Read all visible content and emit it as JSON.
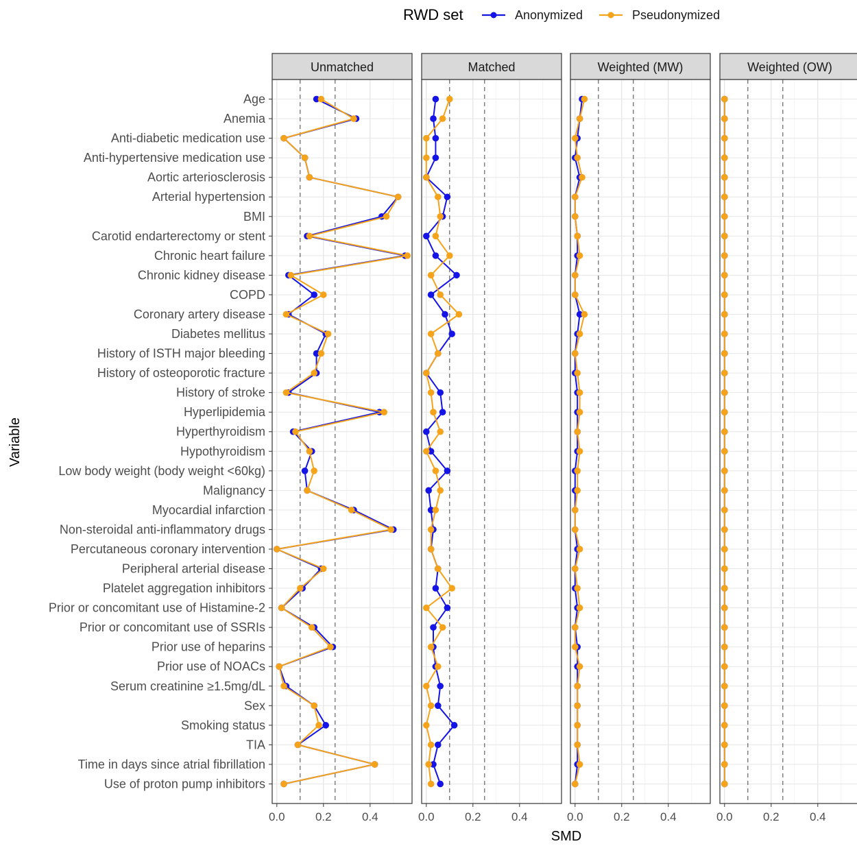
{
  "legend": {
    "title": "RWD set",
    "items": [
      {
        "label": "Anonymized",
        "color": "#1414e6"
      },
      {
        "label": "Pseudonymized",
        "color": "#f5a31a"
      }
    ]
  },
  "chart_data": {
    "type": "line",
    "xlabel": "SMD",
    "ylabel": "Variable",
    "xlim": [
      -0.02,
      0.58
    ],
    "x_ticks": [
      "0.0",
      "0.2",
      "0.4"
    ],
    "reference_lines": [
      0.1,
      0.25
    ],
    "grid": true,
    "legend_position": "top",
    "variables": [
      "Age",
      "Anemia",
      "Anti-diabetic medication use",
      "Anti-hypertensive medication use",
      "Aortic arteriosclerosis",
      "Arterial hypertension",
      "BMI",
      "Carotid endarterectomy or stent",
      "Chronic heart failure",
      "Chronic kidney disease",
      "COPD",
      "Coronary artery disease",
      "Diabetes mellitus",
      "History of ISTH major bleeding",
      "History of osteoporotic fracture",
      "History of stroke",
      "Hyperlipidemia",
      "Hyperthyroidism",
      "Hypothyroidism",
      "Low body weight (body weight <60kg)",
      "Malignancy",
      "Myocardial infarction",
      "Non-steroidal anti-inflammatory drugs",
      "Percutaneous coronary intervention",
      "Peripheral arterial disease",
      "Platelet aggregation inhibitors",
      "Prior or concomitant use of Histamine-2",
      "Prior or concomitant use of SSRIs",
      "Prior use of heparins",
      "Prior use of NOACs",
      "Serum creatinine ≥1.5mg/dL",
      "Sex",
      "Smoking status",
      "TIA",
      "Time in days since atrial fibrillation",
      "Use of proton pump inhibitors"
    ],
    "panels": [
      {
        "title": "Unmatched",
        "series": [
          {
            "name": "Anonymized",
            "values": [
              0.17,
              0.34,
              0.03,
              0.12,
              0.14,
              0.52,
              0.45,
              0.13,
              0.55,
              0.05,
              0.16,
              0.05,
              0.21,
              0.17,
              0.17,
              0.05,
              0.44,
              0.07,
              0.15,
              0.12,
              0.13,
              0.33,
              0.5,
              0.0,
              0.19,
              0.11,
              0.02,
              0.16,
              0.24,
              0.01,
              0.04,
              0.16,
              0.21,
              0.09,
              0.42,
              0.03
            ]
          },
          {
            "name": "Pseudonymized",
            "values": [
              0.19,
              0.33,
              0.03,
              0.12,
              0.14,
              0.52,
              0.47,
              0.14,
              0.56,
              0.06,
              0.2,
              0.04,
              0.22,
              0.19,
              0.16,
              0.04,
              0.46,
              0.08,
              0.14,
              0.16,
              0.13,
              0.32,
              0.49,
              0.0,
              0.2,
              0.1,
              0.02,
              0.15,
              0.23,
              0.01,
              0.03,
              0.16,
              0.18,
              0.09,
              0.42,
              0.03
            ]
          }
        ]
      },
      {
        "title": "Matched",
        "series": [
          {
            "name": "Anonymized",
            "values": [
              0.04,
              0.03,
              0.04,
              0.04,
              0.0,
              0.09,
              0.07,
              0.0,
              0.04,
              0.13,
              0.02,
              0.08,
              0.11,
              0.05,
              0.0,
              0.06,
              0.07,
              0.0,
              0.02,
              0.09,
              0.01,
              0.02,
              0.03,
              0.02,
              0.05,
              0.04,
              0.09,
              0.03,
              0.03,
              0.04,
              0.06,
              0.05,
              0.12,
              0.05,
              0.03,
              0.06
            ]
          },
          {
            "name": "Pseudonymized",
            "values": [
              0.1,
              0.07,
              0.0,
              0.0,
              0.0,
              0.05,
              0.06,
              0.04,
              0.1,
              0.02,
              0.06,
              0.14,
              0.02,
              0.05,
              0.0,
              0.02,
              0.03,
              0.06,
              0.0,
              0.04,
              0.06,
              0.04,
              0.02,
              0.02,
              0.05,
              0.11,
              0.0,
              0.07,
              0.02,
              0.05,
              0.0,
              0.02,
              0.0,
              0.02,
              0.01,
              0.02
            ]
          }
        ]
      },
      {
        "title": "Weighted (MW)",
        "series": [
          {
            "name": "Anonymized",
            "values": [
              0.03,
              0.02,
              0.01,
              0.0,
              0.02,
              0.0,
              0.0,
              0.01,
              0.01,
              0.0,
              0.0,
              0.02,
              0.01,
              0.0,
              0.0,
              0.01,
              0.01,
              0.01,
              0.01,
              0.0,
              0.0,
              0.0,
              0.0,
              0.01,
              0.0,
              0.0,
              0.01,
              0.0,
              0.01,
              0.01,
              0.01,
              0.01,
              0.01,
              0.01,
              0.01,
              0.0
            ]
          },
          {
            "name": "Pseudonymized",
            "values": [
              0.04,
              0.02,
              0.0,
              0.01,
              0.03,
              0.0,
              0.0,
              0.01,
              0.02,
              0.0,
              0.0,
              0.04,
              0.02,
              0.0,
              0.01,
              0.02,
              0.02,
              0.01,
              0.02,
              0.01,
              0.01,
              0.0,
              0.0,
              0.02,
              0.0,
              0.01,
              0.02,
              0.0,
              0.0,
              0.02,
              0.01,
              0.01,
              0.01,
              0.01,
              0.02,
              0.0
            ]
          }
        ]
      },
      {
        "title": "Weighted (OW)",
        "series": [
          {
            "name": "Anonymized",
            "values": [
              0.0,
              0.0,
              0.0,
              0.0,
              0.0,
              0.0,
              0.0,
              0.0,
              0.0,
              0.0,
              0.0,
              0.0,
              0.0,
              0.0,
              0.0,
              0.0,
              0.0,
              0.0,
              0.0,
              0.0,
              0.0,
              0.0,
              0.0,
              0.0,
              0.0,
              0.0,
              0.0,
              0.0,
              0.0,
              0.0,
              0.0,
              0.0,
              0.0,
              0.0,
              0.0,
              0.0
            ]
          },
          {
            "name": "Pseudonymized",
            "values": [
              0.0,
              0.0,
              0.0,
              0.0,
              0.0,
              0.0,
              0.0,
              0.0,
              0.0,
              0.0,
              0.0,
              0.0,
              0.0,
              0.0,
              0.0,
              0.0,
              0.0,
              0.0,
              0.0,
              0.0,
              0.0,
              0.0,
              0.0,
              0.0,
              0.0,
              0.0,
              0.0,
              0.0,
              0.0,
              0.0,
              0.0,
              0.0,
              0.0,
              0.0,
              0.0,
              0.0
            ]
          }
        ]
      }
    ]
  }
}
